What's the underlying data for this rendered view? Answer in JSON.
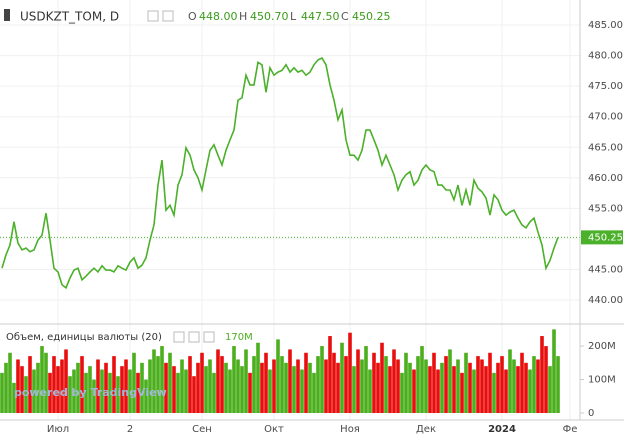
{
  "chart_data": {
    "type": "line",
    "title": "USDKZT_TOM, D",
    "ohlc": [
      {
        "label": "O",
        "value": "448.00"
      },
      {
        "label": "H",
        "value": "450.70"
      },
      {
        "label": "L",
        "value": "447.50"
      },
      {
        "label": "C",
        "value": "450.25"
      }
    ],
    "watermark": "powered by TradingView",
    "xlim": [
      -0.5,
      144.5
    ],
    "xticks": [
      {
        "value": 14,
        "label": "Июл"
      },
      {
        "value": 32,
        "label": "2"
      },
      {
        "value": 50,
        "label": "Сен"
      },
      {
        "value": 68,
        "label": "Окт"
      },
      {
        "value": 87,
        "label": "Ноя"
      },
      {
        "value": 106,
        "label": "Дек"
      },
      {
        "value": 125,
        "label": "2024"
      },
      {
        "value": 142,
        "label": "Фе"
      }
    ],
    "ylim": [
      436.4,
      489.1
    ],
    "yticks": [
      {
        "value": 440,
        "label": "440.00"
      },
      {
        "value": 445,
        "label": "445.00"
      },
      {
        "value": 450,
        "label": "450.00"
      },
      {
        "value": 455,
        "label": "455.00"
      },
      {
        "value": 460,
        "label": "460.00"
      },
      {
        "value": 465,
        "label": "465.00"
      },
      {
        "value": 470,
        "label": "470.00"
      },
      {
        "value": 475,
        "label": "475.00"
      },
      {
        "value": 480,
        "label": "480.00"
      },
      {
        "value": 485,
        "label": "485.00"
      }
    ],
    "grid": true,
    "price": {
      "color": "#4bb02a",
      "values": [
        445.2,
        447.4,
        449.0,
        452.8,
        449.3,
        448.2,
        448.5,
        447.9,
        448.2,
        449.8,
        450.6,
        454.2,
        449.8,
        445.2,
        444.6,
        442.5,
        442.0,
        443.6,
        444.9,
        445.2,
        443.3,
        443.9,
        444.6,
        445.2,
        444.6,
        445.6,
        444.9,
        444.9,
        444.6,
        445.6,
        445.2,
        444.9,
        446.2,
        446.9,
        445.2,
        445.7,
        446.9,
        449.8,
        452.3,
        458.8,
        462.9,
        454.7,
        455.5,
        453.9,
        458.8,
        460.5,
        464.9,
        463.7,
        461.3,
        460.0,
        458.0,
        461.3,
        464.5,
        465.4,
        463.7,
        462.1,
        464.5,
        466.2,
        467.8,
        472.7,
        473.1,
        476.8,
        475.2,
        475.2,
        478.9,
        478.5,
        474.0,
        478.0,
        476.8,
        477.3,
        477.6,
        478.5,
        477.3,
        478.0,
        477.3,
        477.6,
        476.8,
        477.3,
        478.5,
        479.3,
        479.6,
        478.5,
        475.2,
        472.7,
        469.5,
        471.1,
        466.2,
        463.7,
        463.7,
        462.9,
        464.5,
        467.8,
        467.8,
        466.2,
        464.5,
        462.1,
        463.7,
        462.1,
        460.5,
        458.0,
        459.6,
        460.5,
        461.0,
        458.8,
        459.6,
        461.3,
        462.1,
        461.3,
        461.0,
        458.8,
        458.8,
        458.0,
        458.0,
        456.4,
        458.8,
        455.5,
        458.0,
        455.5,
        459.6,
        458.3,
        457.7,
        456.7,
        453.9,
        457.2,
        456.4,
        454.7,
        453.9,
        454.4,
        454.7,
        453.4,
        452.3,
        451.8,
        452.8,
        453.4,
        451.1,
        449.0,
        445.2,
        446.5,
        448.5,
        450.25
      ]
    },
    "volume": {
      "name": "Объем, единицы валюты (20)",
      "last_label": "170M",
      "up_color": "#4caf1e",
      "down_color": "#e8100e",
      "ylim": [
        0,
        260
      ],
      "yticks": [
        0,
        {
          "value": 100,
          "label": "100M"
        },
        {
          "value": 200,
          "label": "200M"
        }
      ],
      "values": [
        120,
        150,
        180,
        90,
        160,
        140,
        110,
        170,
        130,
        150,
        200,
        180,
        120,
        170,
        140,
        160,
        190,
        110,
        130,
        150,
        170,
        120,
        140,
        100,
        160,
        130,
        150,
        120,
        170,
        110,
        140,
        160,
        130,
        180,
        120,
        150,
        100,
        160,
        190,
        170,
        200,
        150,
        180,
        140,
        120,
        160,
        130,
        170,
        110,
        150,
        180,
        140,
        160,
        120,
        190,
        170,
        150,
        130,
        200,
        160,
        140,
        190,
        120,
        170,
        210,
        150,
        180,
        130,
        160,
        220,
        170,
        150,
        190,
        140,
        160,
        130,
        180,
        150,
        120,
        170,
        200,
        160,
        230,
        180,
        150,
        210,
        170,
        240,
        140,
        190,
        160,
        200,
        130,
        180,
        150,
        210,
        170,
        140,
        190,
        160,
        120,
        180,
        150,
        130,
        170,
        200,
        160,
        140,
        180,
        130,
        150,
        170,
        190,
        140,
        160,
        120,
        180,
        150,
        130,
        170,
        160,
        140,
        180,
        120,
        150,
        170,
        130,
        190,
        160,
        140,
        180,
        150,
        130,
        170,
        160,
        230,
        200,
        140,
        250,
        170
      ]
    }
  }
}
